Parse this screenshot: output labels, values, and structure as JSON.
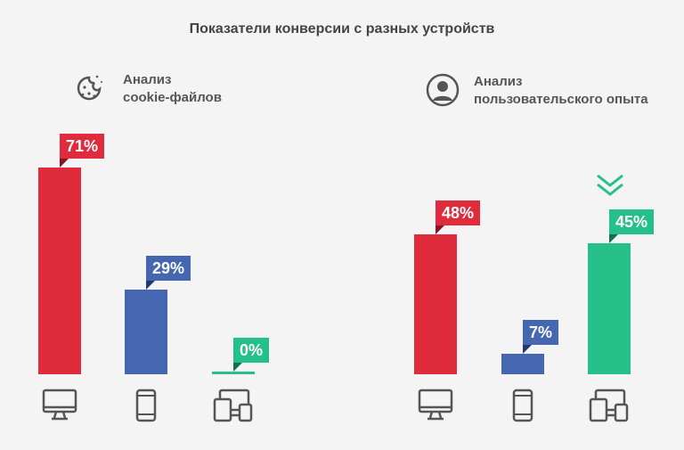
{
  "chart_data": {
    "type": "bar",
    "title": "Показатели конверсии с разных устройств",
    "categories": [
      "Компьютер",
      "Смартфон",
      "Мультиустройство"
    ],
    "series": [
      {
        "name": "Анализ cookie-файлов",
        "values": [
          71,
          29,
          0
        ],
        "labels": [
          "71%",
          "29%",
          "0%"
        ]
      },
      {
        "name": "Анализ пользовательского опыта",
        "values": [
          48,
          7,
          45
        ],
        "labels": [
          "48%",
          "7%",
          "45%"
        ]
      }
    ],
    "ylim": [
      0,
      71
    ]
  },
  "groups": [
    {
      "line1": "Анализ",
      "line2": "cookie-файлов",
      "icon": "cookie-icon"
    },
    {
      "line1": "Анализ",
      "line2": "пользовательского опыта",
      "icon": "user-icon"
    }
  ],
  "colors": {
    "desktop": "#e02b3c",
    "mobile": "#4566b0",
    "multi": "#25c08a",
    "dark": [
      "#8a1522",
      "#233a70",
      "#137150"
    ]
  }
}
